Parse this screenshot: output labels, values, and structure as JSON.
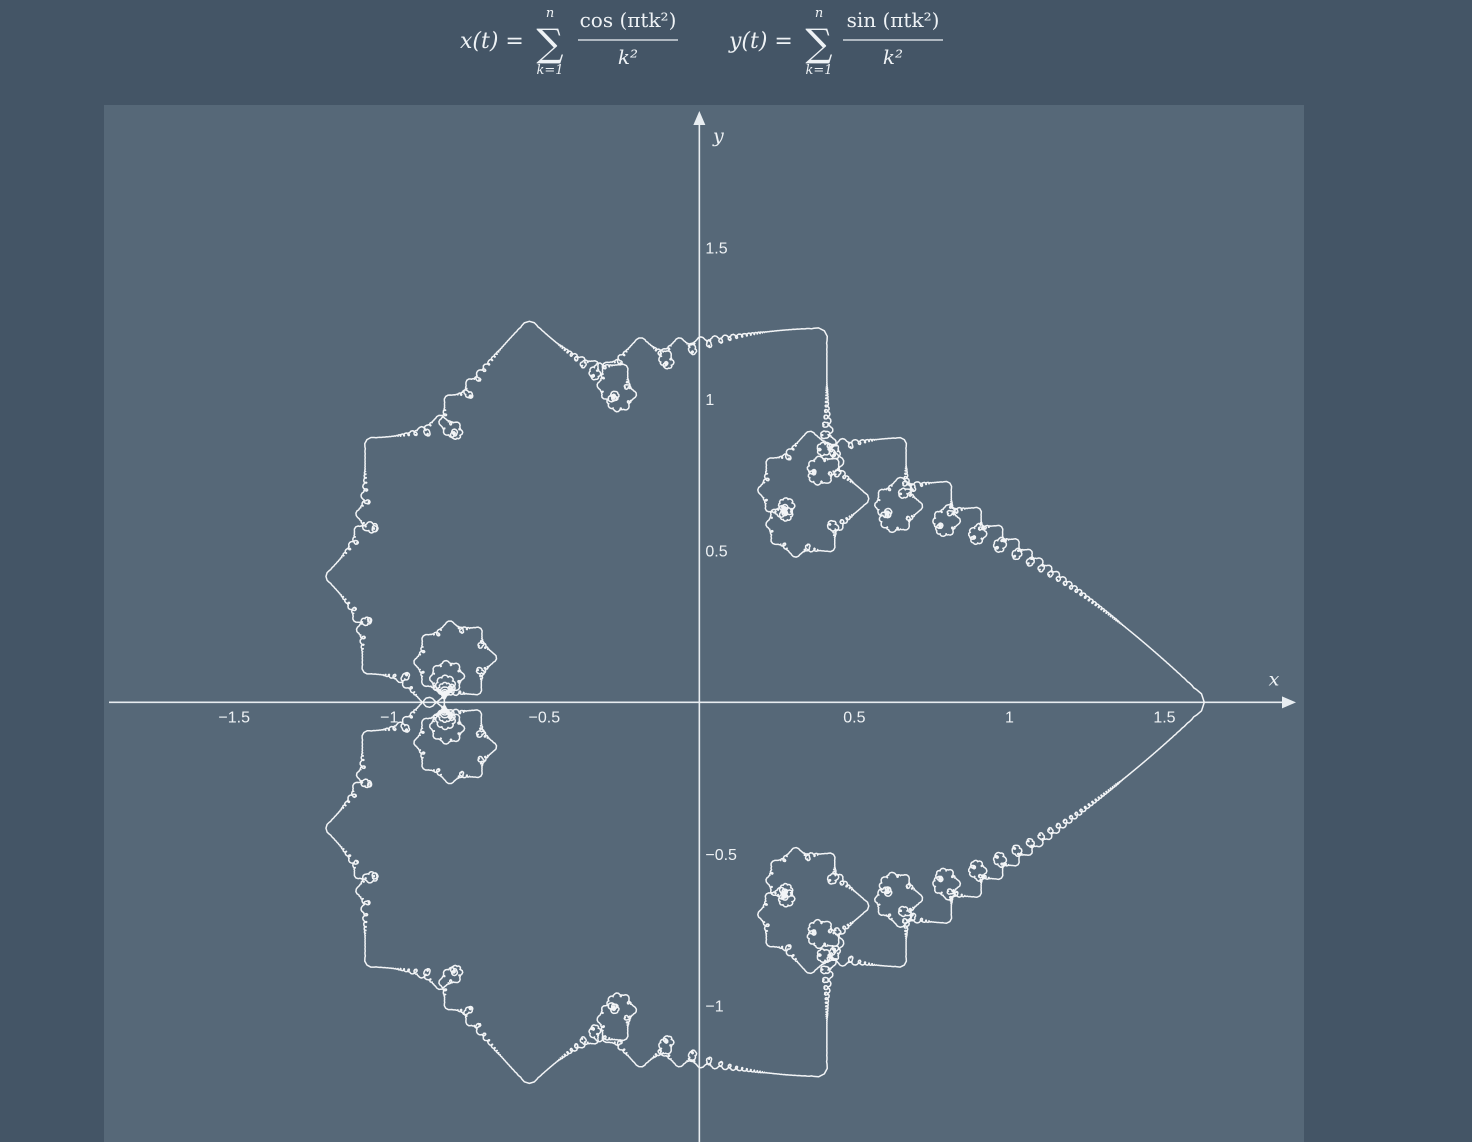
{
  "formulas": {
    "x": {
      "lhs": "x(t) =",
      "sum_upper": "n",
      "sum_lower": "k=1",
      "numerator": "cos (πtk²)",
      "denominator": "k²"
    },
    "y": {
      "lhs": "y(t) =",
      "sum_upper": "n",
      "sum_lower": "k=1",
      "numerator": "sin (πtk²)",
      "denominator": "k²"
    }
  },
  "chart_data": {
    "type": "line",
    "xlabel": "x",
    "ylabel": "y",
    "x_ticks": [
      {
        "value": -1.5,
        "label": "−1.5"
      },
      {
        "value": -1,
        "label": "−1"
      },
      {
        "value": -0.5,
        "label": "−0.5"
      },
      {
        "value": 0.5,
        "label": "0.5"
      },
      {
        "value": 1,
        "label": "1"
      },
      {
        "value": 1.5,
        "label": "1.5"
      }
    ],
    "y_ticks": [
      {
        "value": 1.5,
        "label": "1.5"
      },
      {
        "value": 1,
        "label": "1"
      },
      {
        "value": 0.5,
        "label": "0.5"
      },
      {
        "value": -0.5,
        "label": "−0.5"
      },
      {
        "value": -1,
        "label": "−1"
      }
    ],
    "xlim": [
      -1.92,
      1.95
    ],
    "ylim": [
      -1.45,
      1.97
    ],
    "grid": false,
    "curve": {
      "t_range": [
        0,
        2
      ],
      "terms_n": 60,
      "samples": 12000
    },
    "colors": {
      "curve": "#f2f4f6",
      "axes": "#e8edf1",
      "panel": "#566878",
      "page": "#445566"
    }
  }
}
